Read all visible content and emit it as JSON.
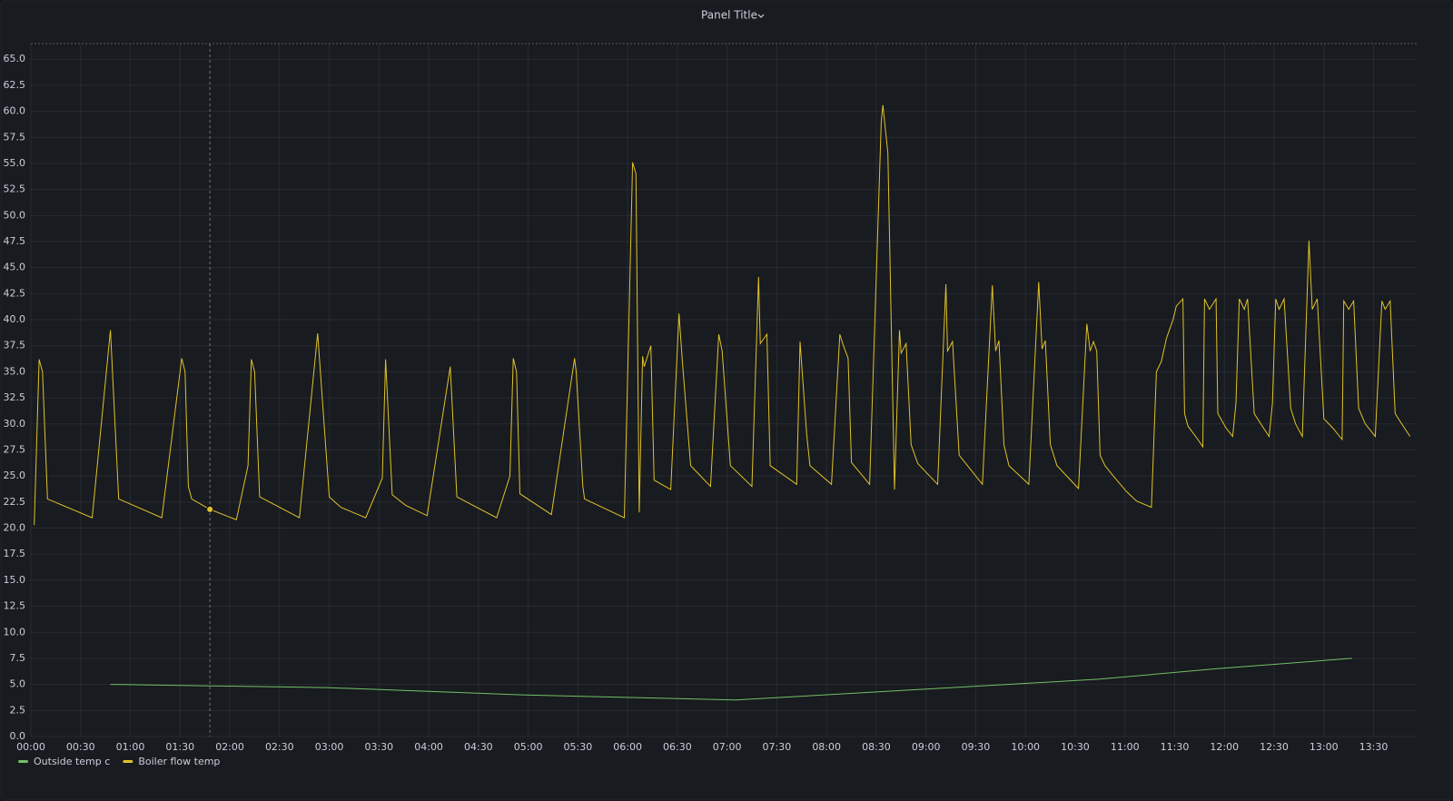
{
  "chart_data": {
    "type": "line",
    "title": "Panel Title",
    "xlim": [
      "00:00",
      "13:56"
    ],
    "xticks": [
      "00:00",
      "00:30",
      "01:00",
      "01:30",
      "02:00",
      "02:30",
      "03:00",
      "03:30",
      "04:00",
      "04:30",
      "05:00",
      "05:30",
      "06:00",
      "06:30",
      "07:00",
      "07:30",
      "08:00",
      "08:30",
      "09:00",
      "09:30",
      "10:00",
      "10:30",
      "11:00",
      "11:30",
      "12:00",
      "12:30",
      "13:00",
      "13:30"
    ],
    "ylim": [
      0,
      66.5
    ],
    "yticks": [
      {
        "value": 0,
        "label": "0.0"
      },
      {
        "value": 2.5,
        "label": "2.5"
      },
      {
        "value": 5,
        "label": "5.0"
      },
      {
        "value": 7.5,
        "label": "7.5"
      },
      {
        "value": 10,
        "label": "10.0"
      },
      {
        "value": 12.5,
        "label": "12.5"
      },
      {
        "value": 15,
        "label": "15.0"
      },
      {
        "value": 17.5,
        "label": "17.5"
      },
      {
        "value": 20,
        "label": "20.0"
      },
      {
        "value": 22.5,
        "label": "22.5"
      },
      {
        "value": 25,
        "label": "25.0"
      },
      {
        "value": 27.5,
        "label": "27.5"
      },
      {
        "value": 30,
        "label": "30.0"
      },
      {
        "value": 32.5,
        "label": "32.5"
      },
      {
        "value": 35,
        "label": "35.0"
      },
      {
        "value": 37.5,
        "label": "37.5"
      },
      {
        "value": 40,
        "label": "40.0"
      },
      {
        "value": 42.5,
        "label": "42.5"
      },
      {
        "value": 45,
        "label": "45.0"
      },
      {
        "value": 47.5,
        "label": "47.5"
      },
      {
        "value": 50,
        "label": "50.0"
      },
      {
        "value": 52.5,
        "label": "52.5"
      },
      {
        "value": 55,
        "label": "55.0"
      },
      {
        "value": 57.5,
        "label": "57.5"
      },
      {
        "value": 60,
        "label": "60.0"
      },
      {
        "value": 62.5,
        "label": "62.5"
      },
      {
        "value": 65,
        "label": "65.0"
      }
    ],
    "grid": true,
    "legend": "bottom-left",
    "series": [
      {
        "name": "Outside temp c",
        "color": "#73bf69",
        "x": [
          "00:48",
          "02:58",
          "04:56",
          "07:05",
          "10:44",
          "11:55",
          "13:17"
        ],
        "values": [
          5.0,
          4.7,
          4.0,
          3.5,
          5.5,
          6.5,
          7.5
        ]
      },
      {
        "name": "Boiler flow temp",
        "color": "#e0c22a",
        "x": [
          "00:02",
          "00:05",
          "00:07",
          "00:10",
          "00:37",
          "00:48",
          "00:53",
          "01:19",
          "01:31",
          "01:33",
          "01:35",
          "01:37",
          "01:48",
          "02:04",
          "02:11",
          "02:13",
          "02:15",
          "02:18",
          "02:42",
          "02:53",
          "03:00",
          "03:07",
          "03:22",
          "03:32",
          "03:34",
          "03:38",
          "03:46",
          "03:59",
          "04:13",
          "04:17",
          "04:41",
          "04:49",
          "04:51",
          "04:53",
          "04:55",
          "05:14",
          "05:28",
          "05:29",
          "05:33",
          "05:34",
          "05:58",
          "06:03",
          "06:05",
          "06:07",
          "06:09",
          "06:10",
          "06:14",
          "06:16",
          "06:26",
          "06:31",
          "06:33",
          "06:38",
          "06:50",
          "06:55",
          "06:57",
          "07:02",
          "07:15",
          "07:19",
          "07:20",
          "07:24",
          "07:26",
          "07:42",
          "07:44",
          "07:48",
          "07:50",
          "08:03",
          "08:08",
          "08:10",
          "08:13",
          "08:15",
          "08:26",
          "08:33",
          "08:34",
          "08:37",
          "08:41",
          "08:44",
          "08:45",
          "08:48",
          "08:51",
          "08:55",
          "09:07",
          "09:12",
          "09:13",
          "09:16",
          "09:20",
          "09:34",
          "09:40",
          "09:42",
          "09:44",
          "09:47",
          "09:50",
          "10:02",
          "10:08",
          "10:10",
          "10:12",
          "10:15",
          "10:19",
          "10:32",
          "10:37",
          "10:39",
          "10:41",
          "10:43",
          "10:45",
          "10:48",
          "10:53",
          "11:01",
          "11:07",
          "11:16",
          "11:19",
          "11:22",
          "11:25",
          "11:29",
          "11:31",
          "11:35",
          "11:36",
          "11:38",
          "11:44",
          "11:47",
          "11:48",
          "11:51",
          "11:55",
          "11:56",
          "12:01",
          "12:05",
          "12:07",
          "12:09",
          "12:12",
          "12:14",
          "12:18",
          "12:24",
          "12:27",
          "12:29",
          "12:31",
          "12:33",
          "12:36",
          "12:40",
          "12:43",
          "12:47",
          "12:51",
          "12:53",
          "12:56",
          "13:00",
          "13:06",
          "13:11",
          "13:12",
          "13:15",
          "13:18",
          "13:21",
          "13:25",
          "13:31",
          "13:35",
          "13:37",
          "13:40",
          "13:43",
          "13:45",
          "13:52"
        ],
        "values": [
          20.3,
          36.2,
          35,
          22.8,
          21.0,
          39.0,
          22.8,
          21.0,
          36.3,
          35,
          24,
          22.8,
          21.8,
          20.8,
          26,
          36.2,
          35,
          23,
          21,
          38.7,
          23,
          22,
          21,
          24.8,
          36.2,
          23.2,
          22.2,
          21.2,
          35.5,
          23,
          21,
          25,
          36.3,
          35,
          23.3,
          21.3,
          36.3,
          35,
          24,
          22.8,
          21,
          55.1,
          54,
          21.5,
          36.5,
          35.5,
          37.5,
          24.6,
          23.7,
          40.6,
          36,
          26,
          24,
          38.6,
          37,
          26,
          24,
          44.1,
          37.7,
          38.6,
          26,
          24.2,
          37.9,
          29,
          26,
          24.2,
          38.6,
          37.6,
          36.3,
          26.3,
          24.2,
          59,
          60.6,
          56,
          23.7,
          39,
          36.8,
          37.7,
          28,
          26.2,
          24.2,
          43.4,
          37,
          37.9,
          27,
          24.2,
          43.3,
          37,
          38,
          28,
          26,
          24.2,
          43.6,
          37.2,
          38,
          28,
          26,
          23.8,
          39.6,
          37,
          37.9,
          37,
          27,
          26,
          25,
          23.5,
          22.6,
          22,
          35,
          36,
          38.2,
          40,
          41.3,
          42,
          31,
          29.8,
          28.5,
          27.8,
          42,
          41,
          42,
          31,
          29.6,
          28.8,
          32,
          42,
          41,
          42,
          31,
          29.5,
          28.8,
          32,
          42,
          41,
          42,
          31.5,
          30,
          28.8,
          47.6,
          41,
          42,
          30.5,
          29.5,
          28.5,
          41.8,
          41,
          41.8,
          31.5,
          30,
          28.8,
          41.8,
          41,
          41.8,
          31,
          30.5,
          28.8
        ]
      }
    ]
  }
}
